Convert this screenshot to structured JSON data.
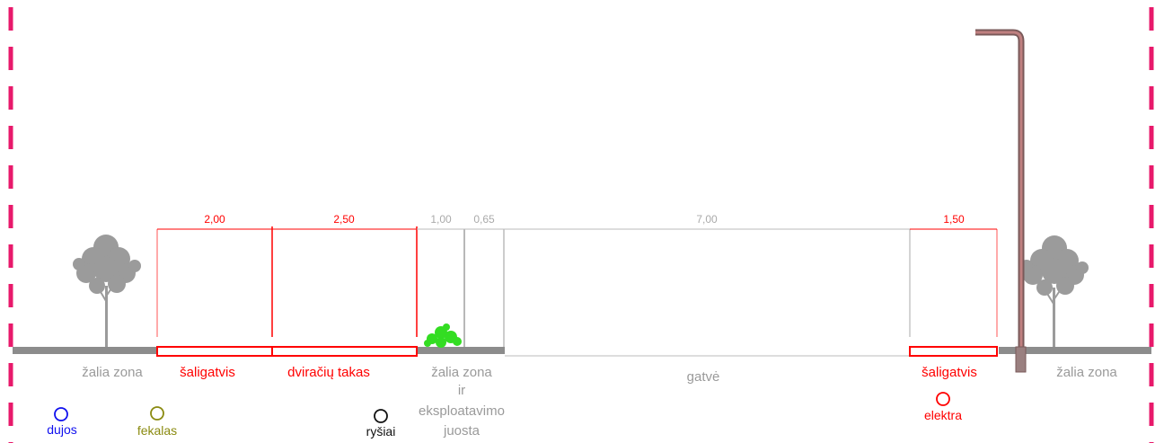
{
  "header_text": "",
  "colors": {
    "boundary": "#e8196b",
    "red": "#ff0000",
    "gray_text": "#9a9a9a",
    "ground": "#8c8c8c",
    "tree": "#9b9b9b",
    "bush": "#33dd22",
    "pole": "#a06060",
    "gas": "#1010ee",
    "sewer": "#8a8a10",
    "telecom": "#111111",
    "electric": "#ff0000"
  },
  "dimensions": [
    {
      "value": "2,00",
      "color": "red"
    },
    {
      "value": "2,50",
      "color": "red"
    },
    {
      "value": "1,00",
      "color": "gray"
    },
    {
      "value": "0,65",
      "color": "gray"
    },
    {
      "value": "7,00",
      "color": "gray"
    },
    {
      "value": "1,50",
      "color": "red"
    }
  ],
  "zones": [
    {
      "id": "green-left",
      "lines": [
        "žalia zona"
      ],
      "color": "gray"
    },
    {
      "id": "sidewalk-left",
      "lines": [
        "šaligatvis"
      ],
      "color": "red"
    },
    {
      "id": "bike-lane",
      "lines": [
        "dviračių takas"
      ],
      "color": "red"
    },
    {
      "id": "green-maintenance",
      "lines": [
        "žalia zona",
        "ir",
        "eksploatavimo",
        "juosta"
      ],
      "color": "gray"
    },
    {
      "id": "street",
      "lines": [
        "gatvė"
      ],
      "color": "gray"
    },
    {
      "id": "sidewalk-right",
      "lines": [
        "šaligatvis"
      ],
      "color": "red"
    },
    {
      "id": "green-right",
      "lines": [
        "žalia zona"
      ],
      "color": "gray"
    }
  ],
  "utilities": [
    {
      "id": "gas",
      "label": "dujos",
      "icon": "circle-icon"
    },
    {
      "id": "sewer",
      "label": "fekalas",
      "icon": "circle-icon"
    },
    {
      "id": "telecom",
      "label": "ryšiai",
      "icon": "circle-icon"
    },
    {
      "id": "electric",
      "label": "elektra",
      "icon": "circle-icon"
    }
  ]
}
